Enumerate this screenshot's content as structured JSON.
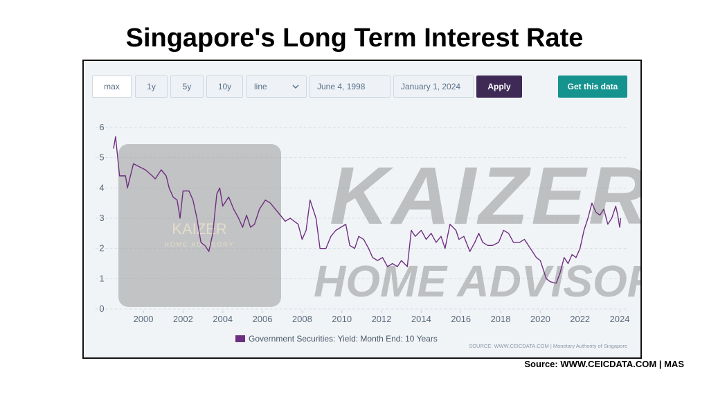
{
  "title": "Singapore's Long Term Interest Rate",
  "toolbar": {
    "range_buttons": [
      "max",
      "1y",
      "5y",
      "10y"
    ],
    "chart_type": "line",
    "start_date": "June 4, 1998",
    "end_date": "January 1, 2024",
    "apply": "Apply",
    "get_data": "Get this data"
  },
  "watermark": {
    "brand": "KAIZER",
    "brand_line2": "HOME ADVISORY",
    "logo_text": "KAIZER",
    "logo_sub": "HOME ADVISORY"
  },
  "chart_data": {
    "type": "line",
    "x": [
      1998.5,
      1998.6,
      1998.8,
      1999.1,
      1999.2,
      1999.5,
      1999.8,
      2000.1,
      2000.45,
      2000.6,
      2000.9,
      2001.15,
      2001.3,
      2001.5,
      2001.7,
      2001.85,
      2002.0,
      2002.3,
      2002.5,
      2002.7,
      2002.9,
      2003.1,
      2003.3,
      2003.5,
      2003.7,
      2003.85,
      2004.0,
      2004.3,
      2004.55,
      2004.8,
      2005.0,
      2005.2,
      2005.4,
      2005.6,
      2005.85,
      2006.15,
      2006.4,
      2006.65,
      2006.9,
      2007.15,
      2007.4,
      2007.8,
      2008.0,
      2008.2,
      2008.4,
      2008.55,
      2008.7,
      2008.9,
      2009.2,
      2009.45,
      2009.7,
      2009.95,
      2010.2,
      2010.4,
      2010.65,
      2010.85,
      2011.1,
      2011.35,
      2011.55,
      2011.8,
      2012.05,
      2012.3,
      2012.55,
      2012.8,
      2013.0,
      2013.3,
      2013.5,
      2013.7,
      2014.0,
      2014.25,
      2014.5,
      2014.75,
      2015.0,
      2015.2,
      2015.45,
      2015.75,
      2015.9,
      2016.15,
      2016.45,
      2016.7,
      2016.9,
      2017.1,
      2017.35,
      2017.6,
      2017.9,
      2018.15,
      2018.4,
      2018.65,
      2018.95,
      2019.2,
      2019.5,
      2019.8,
      2020.0,
      2020.3,
      2020.5,
      2020.8,
      2021.0,
      2021.2,
      2021.4,
      2021.6,
      2021.8,
      2022.0,
      2022.2,
      2022.4,
      2022.6,
      2022.8,
      2023.0,
      2023.2,
      2023.4,
      2023.6,
      2023.8,
      2023.9,
      2024.0,
      2024.05
    ],
    "series": [
      {
        "name": "Government Securities: Yield: Month End: 10 Years",
        "color": "#6e2f80",
        "values": [
          5.3,
          5.7,
          4.4,
          4.4,
          4.0,
          4.8,
          4.7,
          4.6,
          4.4,
          4.3,
          4.6,
          4.4,
          4.0,
          3.7,
          3.6,
          3.0,
          3.9,
          3.9,
          3.6,
          3.0,
          2.2,
          2.1,
          1.9,
          2.5,
          3.8,
          4.0,
          3.4,
          3.7,
          3.3,
          3.0,
          2.7,
          3.1,
          2.7,
          2.8,
          3.3,
          3.6,
          3.5,
          3.3,
          3.1,
          2.9,
          3.0,
          2.8,
          2.3,
          2.6,
          3.6,
          3.3,
          3.0,
          2.0,
          2.0,
          2.4,
          2.6,
          2.7,
          2.8,
          2.1,
          2.0,
          2.4,
          2.3,
          2.0,
          1.7,
          1.6,
          1.7,
          1.4,
          1.5,
          1.4,
          1.6,
          1.4,
          2.6,
          2.4,
          2.6,
          2.3,
          2.5,
          2.2,
          2.4,
          2.0,
          2.8,
          2.6,
          2.3,
          2.4,
          1.9,
          2.2,
          2.5,
          2.2,
          2.1,
          2.1,
          2.2,
          2.6,
          2.5,
          2.2,
          2.2,
          2.3,
          2.0,
          1.7,
          1.6,
          1.0,
          0.9,
          0.85,
          1.2,
          1.7,
          1.5,
          1.8,
          1.7,
          2.0,
          2.6,
          3.0,
          3.5,
          3.2,
          3.1,
          3.3,
          2.8,
          3.0,
          3.4,
          3.1,
          2.7,
          3.0
        ]
      }
    ],
    "xlim": [
      1998,
      2024.4
    ],
    "xticks": [
      2000,
      2002,
      2004,
      2006,
      2008,
      2010,
      2012,
      2014,
      2016,
      2018,
      2020,
      2022,
      2024
    ],
    "ylim": [
      0,
      6
    ],
    "yticks": [
      0,
      1,
      2,
      3,
      4,
      5,
      6
    ],
    "grid": true,
    "source": "SOURCE: WWW.CEICDATA.COM | Monetary Authority of Singapore"
  },
  "footer": "Source: WWW.CEICDATA.COM | MAS"
}
